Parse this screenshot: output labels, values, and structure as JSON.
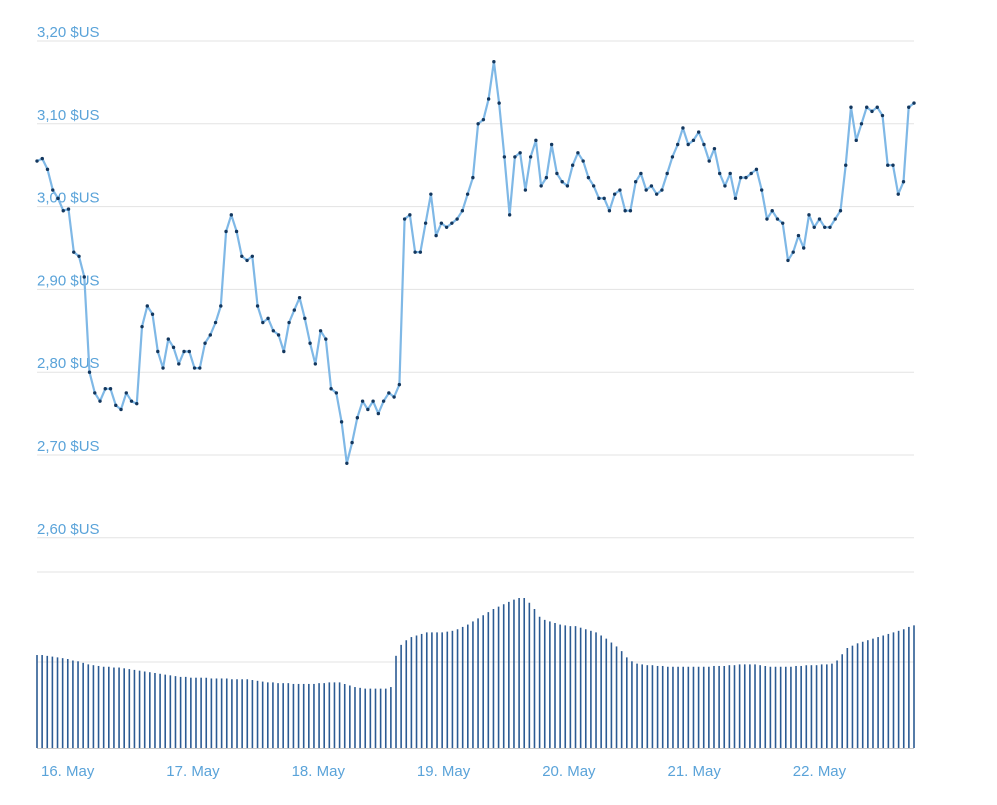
{
  "colors": {
    "line": "#7fb8e6",
    "point": "#13375e",
    "volume": "#2c5b93",
    "tick_text": "#5aa3d9",
    "grid": "#e3e3e3"
  },
  "chart_data": [
    {
      "type": "line",
      "title": "",
      "xlabel": "",
      "ylabel": "",
      "grid": true,
      "legend": "none",
      "ylim": [
        2.57,
        3.21
      ],
      "y_tick_values": [
        3.2,
        3.1,
        3.0,
        2.9,
        2.8,
        2.7,
        2.6
      ],
      "y_tick_labels": [
        "3,20 $US",
        "3,10 $US",
        "3,00 $US",
        "2,90 $US",
        "2,80 $US",
        "2,70 $US",
        "2,60 $US"
      ],
      "series": [
        {
          "values": [
            3.055,
            3.058,
            3.045,
            3.02,
            3.01,
            2.995,
            2.997,
            2.945,
            2.94,
            2.915,
            2.8,
            2.775,
            2.765,
            2.78,
            2.78,
            2.76,
            2.755,
            2.775,
            2.765,
            2.762,
            2.855,
            2.88,
            2.87,
            2.825,
            2.805,
            2.84,
            2.83,
            2.81,
            2.825,
            2.825,
            2.805,
            2.805,
            2.835,
            2.845,
            2.86,
            2.88,
            2.97,
            2.99,
            2.97,
            2.94,
            2.935,
            2.94,
            2.88,
            2.86,
            2.865,
            2.85,
            2.845,
            2.825,
            2.86,
            2.875,
            2.89,
            2.865,
            2.835,
            2.81,
            2.85,
            2.84,
            2.78,
            2.775,
            2.74,
            2.69,
            2.715,
            2.745,
            2.765,
            2.755,
            2.765,
            2.75,
            2.765,
            2.775,
            2.77,
            2.785,
            2.985,
            2.99,
            2.945,
            2.945,
            2.98,
            3.015,
            2.965,
            2.98,
            2.975,
            2.98,
            2.985,
            2.995,
            3.015,
            3.035,
            3.1,
            3.105,
            3.13,
            3.175,
            3.125,
            3.06,
            2.99,
            3.06,
            3.065,
            3.02,
            3.06,
            3.08,
            3.025,
            3.035,
            3.075,
            3.04,
            3.03,
            3.025,
            3.05,
            3.065,
            3.055,
            3.035,
            3.025,
            3.01,
            3.01,
            2.995,
            3.015,
            3.02,
            2.995,
            2.995,
            3.03,
            3.04,
            3.02,
            3.025,
            3.015,
            3.02,
            3.04,
            3.06,
            3.075,
            3.095,
            3.075,
            3.08,
            3.09,
            3.075,
            3.055,
            3.07,
            3.04,
            3.025,
            3.04,
            3.01,
            3.035,
            3.035,
            3.04,
            3.045,
            3.02,
            2.985,
            2.995,
            2.985,
            2.98,
            2.935,
            2.945,
            2.965,
            2.95,
            2.99,
            2.975,
            2.985,
            2.975,
            2.975,
            2.985,
            2.995,
            3.05,
            3.12,
            3.08,
            3.1,
            3.12,
            3.115,
            3.12,
            3.11,
            3.05,
            3.05,
            3.015,
            3.03,
            3.12,
            3.125
          ]
        }
      ]
    },
    {
      "type": "bar",
      "title": "",
      "xlabel": "",
      "ylabel": "",
      "grid": true,
      "legend": "none",
      "ylim": [
        0,
        1
      ],
      "x_tick_labels": [
        "16. May",
        "17. May",
        "18. May",
        "19. May",
        "20. May",
        "21. May",
        "22. May"
      ],
      "series": [
        {
          "values": [
            0.595,
            0.595,
            0.59,
            0.585,
            0.58,
            0.575,
            0.57,
            0.56,
            0.555,
            0.545,
            0.535,
            0.53,
            0.525,
            0.52,
            0.52,
            0.515,
            0.515,
            0.51,
            0.505,
            0.5,
            0.495,
            0.49,
            0.485,
            0.48,
            0.475,
            0.47,
            0.465,
            0.46,
            0.455,
            0.455,
            0.45,
            0.45,
            0.45,
            0.45,
            0.445,
            0.445,
            0.445,
            0.445,
            0.44,
            0.44,
            0.44,
            0.44,
            0.435,
            0.43,
            0.425,
            0.42,
            0.42,
            0.415,
            0.415,
            0.415,
            0.41,
            0.41,
            0.41,
            0.41,
            0.41,
            0.415,
            0.415,
            0.42,
            0.42,
            0.42,
            0.41,
            0.4,
            0.39,
            0.385,
            0.38,
            0.38,
            0.38,
            0.38,
            0.38,
            0.39,
            0.59,
            0.66,
            0.69,
            0.71,
            0.72,
            0.73,
            0.74,
            0.74,
            0.74,
            0.74,
            0.745,
            0.75,
            0.76,
            0.775,
            0.79,
            0.81,
            0.83,
            0.85,
            0.87,
            0.89,
            0.905,
            0.92,
            0.935,
            0.95,
            0.96,
            0.96,
            0.93,
            0.89,
            0.84,
            0.82,
            0.81,
            0.8,
            0.79,
            0.785,
            0.78,
            0.78,
            0.77,
            0.76,
            0.75,
            0.74,
            0.72,
            0.7,
            0.675,
            0.65,
            0.62,
            0.58,
            0.555,
            0.54,
            0.535,
            0.53,
            0.53,
            0.525,
            0.525,
            0.52,
            0.52,
            0.52,
            0.52,
            0.52,
            0.52,
            0.52,
            0.52,
            0.52,
            0.525,
            0.525,
            0.525,
            0.53,
            0.53,
            0.535,
            0.535,
            0.535,
            0.535,
            0.53,
            0.525,
            0.52,
            0.52,
            0.52,
            0.52,
            0.52,
            0.525,
            0.525,
            0.53,
            0.53,
            0.53,
            0.535,
            0.535,
            0.54,
            0.56,
            0.6,
            0.64,
            0.655,
            0.67,
            0.68,
            0.69,
            0.7,
            0.71,
            0.72,
            0.73,
            0.74,
            0.75,
            0.76,
            0.775,
            0.785
          ]
        }
      ]
    }
  ]
}
